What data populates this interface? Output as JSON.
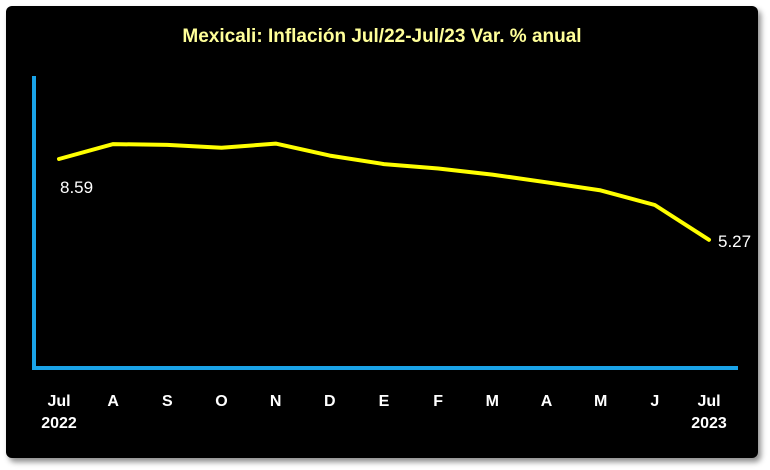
{
  "chart_data": {
    "type": "line",
    "title": "Mexicali: Inflación Jul/22-Jul/23 Var. % anual",
    "categories": [
      "Jul",
      "A",
      "S",
      "O",
      "N",
      "D",
      "E",
      "F",
      "M",
      "A",
      "M",
      "J",
      "Jul"
    ],
    "year_labels": {
      "start": "2022",
      "end": "2023"
    },
    "series": [
      {
        "values": [
          8.59,
          9.2,
          9.17,
          9.05,
          9.22,
          8.73,
          8.38,
          8.2,
          7.95,
          7.63,
          7.3,
          6.7,
          5.27
        ],
        "color": "#ffff00"
      }
    ],
    "data_labels": [
      {
        "index": 0,
        "text": "8.59"
      },
      {
        "index": 12,
        "text": "5.27"
      }
    ],
    "ylim": [
      0,
      12
    ],
    "grid": false,
    "axis_color": "#1aa3e8",
    "background": "#000000"
  }
}
